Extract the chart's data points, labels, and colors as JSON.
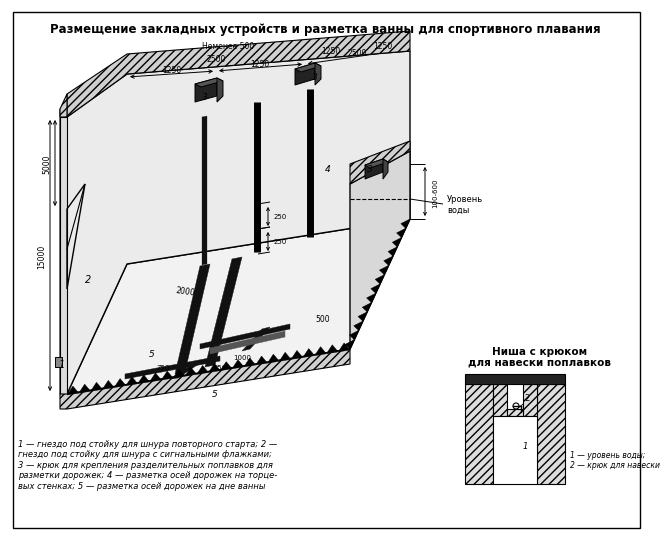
{
  "title": "Размещение закладных устройств и разметка ванны для спортивного плавания",
  "bg_color": "#ffffff",
  "legend_text_line1": "1 — гнездо под стойку для шнура повторного старта; 2 —",
  "legend_text_line2": "гнездо под стойку для шнура с сигнальными флажками;",
  "legend_text_line3": "3 — крюк для крепления разделительных поплавков для",
  "legend_text_line4": "разметки дорожек; 4 — разметка осей дорожек на торце-",
  "legend_text_line5": "вых стенках; 5 — разметка осей дорожек на дне ванны",
  "niche_title_line1": "Ниша с крюком",
  "niche_title_line2": "для навески поплавков",
  "niche_legend1": "1 — уровень воды;",
  "niche_legend2": "2 — крюк для навески",
  "urov_vody": "Уровень\nводы"
}
